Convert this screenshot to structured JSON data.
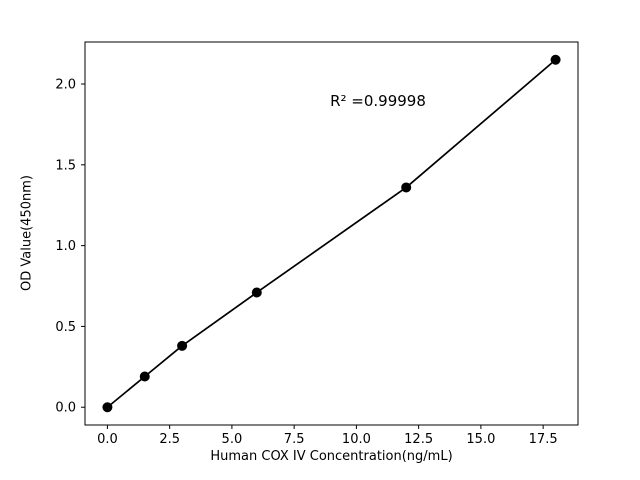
{
  "chart_data": {
    "type": "scatter",
    "title": "",
    "xlabel": "Human COX IV Concentration(ng/mL)",
    "ylabel": "OD Value(450nm)",
    "annotation": "R² =0.99998",
    "x": [
      0.0,
      1.5,
      3.0,
      6.0,
      12.0,
      18.0
    ],
    "y": [
      0.0,
      0.19,
      0.38,
      0.71,
      1.36,
      2.15
    ],
    "fit_line": true,
    "xlim": [
      -0.9,
      18.9
    ],
    "ylim": [
      -0.11,
      2.26
    ],
    "xticks": [
      {
        "value": 0.0,
        "label": "0.0"
      },
      {
        "value": 2.5,
        "label": "2.5"
      },
      {
        "value": 5.0,
        "label": "5.0"
      },
      {
        "value": 7.5,
        "label": "7.5"
      },
      {
        "value": 10.0,
        "label": "10.0"
      },
      {
        "value": 12.5,
        "label": "12.5"
      },
      {
        "value": 15.0,
        "label": "15.0"
      },
      {
        "value": 17.5,
        "label": "17.5"
      }
    ],
    "yticks": [
      {
        "value": 0.0,
        "label": "0.0"
      },
      {
        "value": 0.5,
        "label": "0.5"
      },
      {
        "value": 1.0,
        "label": "1.0"
      },
      {
        "value": 1.5,
        "label": "1.5"
      },
      {
        "value": 2.0,
        "label": "2.0"
      }
    ],
    "grid": false,
    "legend": "none",
    "marker_color": "#000000",
    "line_color": "#000000",
    "background": "#ffffff"
  }
}
